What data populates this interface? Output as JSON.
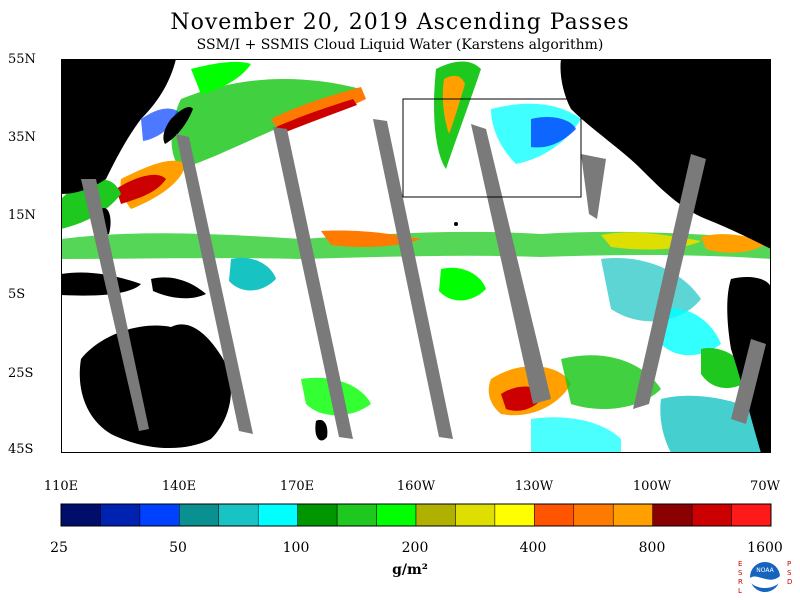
{
  "header": {
    "title": "November 20, 2019  Ascending Passes",
    "subtitle": "SSM/I + SSMIS Cloud Liquid Water (Karstens algorithm)"
  },
  "map": {
    "lat_labels": [
      "55N",
      "35N",
      "15N",
      "5S",
      "25S",
      "45S"
    ],
    "lon_labels": [
      "110E",
      "140E",
      "170E",
      "160W",
      "130W",
      "100W",
      "70W"
    ],
    "colors": {
      "land": "#000000",
      "ocean_clear": "#ffffff",
      "missing_swath_gap": "#7a7a7a",
      "region_box": "#000000"
    }
  },
  "colorbar": {
    "colors": [
      "#000d6b",
      "#0022b0",
      "#0040ff",
      "#0a9090",
      "#18c3c3",
      "#00ffff",
      "#009600",
      "#1ec81e",
      "#00ff00",
      "#b0b000",
      "#dede00",
      "#ffff00",
      "#ff5500",
      "#ff7a00",
      "#ffa000",
      "#8b0000",
      "#cc0000",
      "#ff1a1a"
    ],
    "tick_labels": [
      "25",
      "50",
      "100",
      "200",
      "400",
      "800",
      "1600"
    ],
    "units": "g/m²"
  },
  "logo": {
    "left_text": "ESRL",
    "right_text": "PSD",
    "center_text": "NOAA"
  }
}
